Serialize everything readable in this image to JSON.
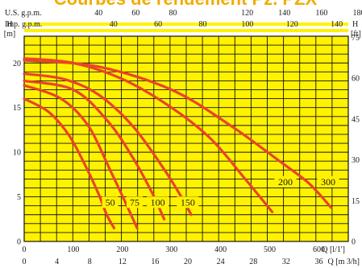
{
  "chart_data": {
    "type": "line",
    "title": "Courbes de rendement Pz. PZX",
    "colors": {
      "background": "#fff200",
      "curve": "#e8452a",
      "grid": "#111111",
      "title": "#f0ad00"
    },
    "grid": true,
    "axes": {
      "x_bottom": {
        "label": "Q [l/1']",
        "range": [
          0,
          660
        ],
        "ticks": [
          0,
          100,
          200,
          300,
          400,
          500,
          600
        ],
        "tick_labels": [
          "0",
          "100",
          "200",
          "300",
          "400",
          "500",
          "600"
        ]
      },
      "x_bottom2": {
        "label": "Q [m 3/h]",
        "ticks": [
          0,
          4,
          8,
          12,
          16,
          20,
          24,
          28,
          32,
          36
        ],
        "tick_labels": [
          "0",
          "4",
          "8",
          "12",
          "16",
          "20",
          "24",
          "28",
          "32",
          "36"
        ]
      },
      "x_top1": {
        "label": "U.S. g.p.m.",
        "ticks": [
          40,
          60,
          80,
          120,
          140,
          160,
          180
        ],
        "tick_labels": [
          "40",
          "60",
          "80",
          "120",
          "140",
          "160",
          "180"
        ]
      },
      "x_top2": {
        "label": "Imp. g.p.m.",
        "ticks": [
          40,
          60,
          80,
          100,
          120,
          140
        ],
        "tick_labels": [
          "40",
          "60",
          "80",
          "100",
          "120",
          "140"
        ]
      },
      "y_left": {
        "label": "H [m]",
        "range": [
          0,
          23
        ],
        "ticks": [
          0,
          5,
          10,
          15,
          20
        ],
        "tick_labels": [
          "0",
          "5",
          "10",
          "15",
          "20"
        ]
      },
      "y_right": {
        "label": "H [ft]",
        "ticks": [
          0,
          15,
          30,
          45,
          60,
          75
        ],
        "tick_labels": [
          "0",
          "15",
          "30",
          "45",
          "60",
          "75"
        ]
      }
    },
    "series": [
      {
        "name": "50",
        "x": [
          0,
          50,
          90,
          120,
          150,
          168,
          183
        ],
        "y": [
          16,
          14.5,
          12,
          9,
          5.5,
          3,
          1.5
        ]
      },
      {
        "name": "75",
        "x": [
          0,
          75,
          130,
          175,
          205,
          230
        ],
        "y": [
          17.5,
          16,
          13,
          8,
          4.5,
          1.5
        ]
      },
      {
        "name": "100",
        "x": [
          0,
          100,
          170,
          220,
          260,
          285
        ],
        "y": [
          18,
          17,
          13.5,
          9.5,
          5.5,
          2.5
        ]
      },
      {
        "name": "150",
        "x": [
          0,
          80,
          150,
          220,
          280,
          320,
          340
        ],
        "y": [
          18.8,
          18.2,
          16.5,
          13,
          8.5,
          5,
          3
        ]
      },
      {
        "name": "200",
        "x": [
          0,
          100,
          200,
          300,
          380,
          450,
          505
        ],
        "y": [
          20.5,
          20,
          18.2,
          15,
          11.5,
          7,
          3.3
        ]
      },
      {
        "name": "300",
        "x": [
          0,
          150,
          300,
          420,
          520,
          580,
          625
        ],
        "y": [
          20.3,
          19.6,
          17,
          13,
          9,
          6.5,
          3.8
        ]
      }
    ],
    "curve_labels": [
      {
        "text": "50",
        "x": 175,
        "y": 4.3
      },
      {
        "text": "75",
        "x": 225,
        "y": 4.3
      },
      {
        "text": "100",
        "x": 272,
        "y": 4.3
      },
      {
        "text": "150",
        "x": 333,
        "y": 4.3
      },
      {
        "text": "200",
        "x": 532,
        "y": 6.6
      },
      {
        "text": "300",
        "x": 619,
        "y": 6.6
      }
    ]
  }
}
